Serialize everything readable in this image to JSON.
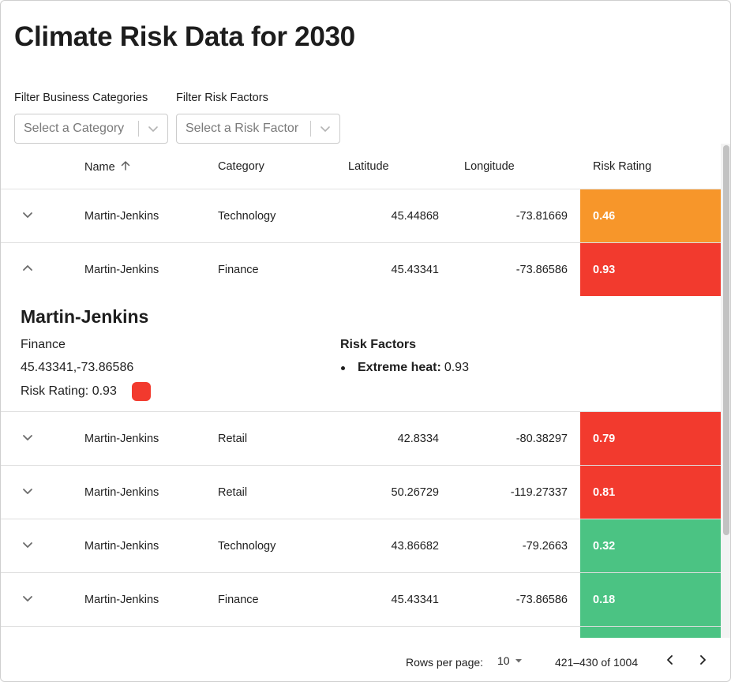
{
  "page": {
    "title": "Climate Risk Data for 2030"
  },
  "filters": {
    "category": {
      "label": "Filter Business Categories",
      "placeholder": "Select a Category"
    },
    "risk": {
      "label": "Filter Risk Factors",
      "placeholder": "Select a Risk Factor"
    }
  },
  "table": {
    "columns": {
      "name": "Name",
      "category": "Category",
      "latitude": "Latitude",
      "longitude": "Longitude",
      "risk_rating": "Risk Rating"
    },
    "sort": {
      "column": "name",
      "direction": "ascending"
    },
    "rows": [
      {
        "name": "Martin-Jenkins",
        "category": "Technology",
        "latitude": "45.44868",
        "longitude": "-73.81669",
        "risk_rating": "0.46",
        "rating_color": "#f7962a",
        "expanded": false
      },
      {
        "name": "Martin-Jenkins",
        "category": "Finance",
        "latitude": "45.43341",
        "longitude": "-73.86586",
        "risk_rating": "0.93",
        "rating_color": "#f23a2e",
        "expanded": true
      },
      {
        "name": "Martin-Jenkins",
        "category": "Retail",
        "latitude": "42.8334",
        "longitude": "-80.38297",
        "risk_rating": "0.79",
        "rating_color": "#f23a2e",
        "expanded": false
      },
      {
        "name": "Martin-Jenkins",
        "category": "Retail",
        "latitude": "50.26729",
        "longitude": "-119.27337",
        "risk_rating": "0.81",
        "rating_color": "#f23a2e",
        "expanded": false
      },
      {
        "name": "Martin-Jenkins",
        "category": "Technology",
        "latitude": "43.86682",
        "longitude": "-79.2663",
        "risk_rating": "0.32",
        "rating_color": "#4bc383",
        "expanded": false
      },
      {
        "name": "Martin-Jenkins",
        "category": "Finance",
        "latitude": "45.43341",
        "longitude": "-73.86586",
        "risk_rating": "0.18",
        "rating_color": "#4bc383",
        "expanded": false
      }
    ],
    "partial_row": {
      "rating_color": "#4bc383"
    },
    "detail": {
      "name": "Martin-Jenkins",
      "category": "Finance",
      "coordinates": "45.43341,-73.86586",
      "risk_rating_text": "Risk Rating: 0.93",
      "swatch_color": "#f23a2e",
      "risk_factors_title": "Risk Factors",
      "risk_factors": [
        {
          "name": "Extreme heat:",
          "value": "0.93"
        }
      ]
    }
  },
  "pagination": {
    "rows_per_page_label": "Rows per page:",
    "rows_per_page": "10",
    "range": "421–430 of 1004"
  },
  "icons": {
    "sort": "arrow-up-icon",
    "expand": "chevron-down-icon",
    "collapse": "chevron-up-icon",
    "dropdown": "chevron-down-icon",
    "prev": "chevron-left-icon",
    "next": "chevron-right-icon"
  }
}
